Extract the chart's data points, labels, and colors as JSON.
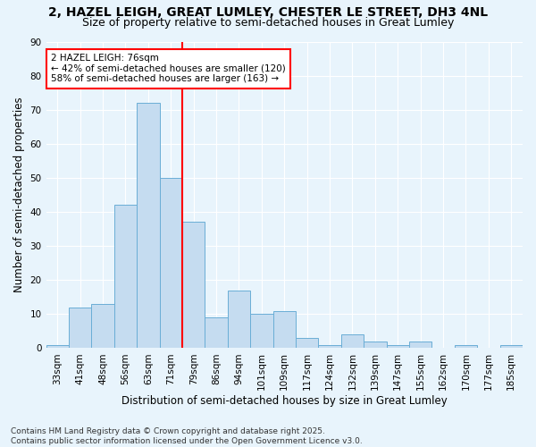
{
  "title1": "2, HAZEL LEIGH, GREAT LUMLEY, CHESTER LE STREET, DH3 4NL",
  "title2": "Size of property relative to semi-detached houses in Great Lumley",
  "xlabel": "Distribution of semi-detached houses by size in Great Lumley",
  "ylabel": "Number of semi-detached properties",
  "categories": [
    "33sqm",
    "41sqm",
    "48sqm",
    "56sqm",
    "63sqm",
    "71sqm",
    "79sqm",
    "86sqm",
    "94sqm",
    "101sqm",
    "109sqm",
    "117sqm",
    "124sqm",
    "132sqm",
    "139sqm",
    "147sqm",
    "155sqm",
    "162sqm",
    "170sqm",
    "177sqm",
    "185sqm"
  ],
  "values": [
    1,
    12,
    13,
    42,
    72,
    50,
    37,
    9,
    17,
    10,
    11,
    3,
    1,
    4,
    2,
    1,
    2,
    0,
    1,
    0,
    1
  ],
  "bar_color": "#c5dcf0",
  "bar_edge_color": "#6aaed6",
  "vline_color": "red",
  "vline_x_index": 5,
  "annotation_text": "2 HAZEL LEIGH: 76sqm\n← 42% of semi-detached houses are smaller (120)\n58% of semi-detached houses are larger (163) →",
  "annotation_box_color": "white",
  "annotation_box_edge": "red",
  "footnote": "Contains HM Land Registry data © Crown copyright and database right 2025.\nContains public sector information licensed under the Open Government Licence v3.0.",
  "background_color": "#e8f4fc",
  "grid_color": "white",
  "ylim": [
    0,
    90
  ],
  "yticks": [
    0,
    10,
    20,
    30,
    40,
    50,
    60,
    70,
    80,
    90
  ],
  "title_fontsize": 10,
  "subtitle_fontsize": 9,
  "axis_label_fontsize": 8.5,
  "tick_fontsize": 7.5,
  "footnote_fontsize": 6.5
}
